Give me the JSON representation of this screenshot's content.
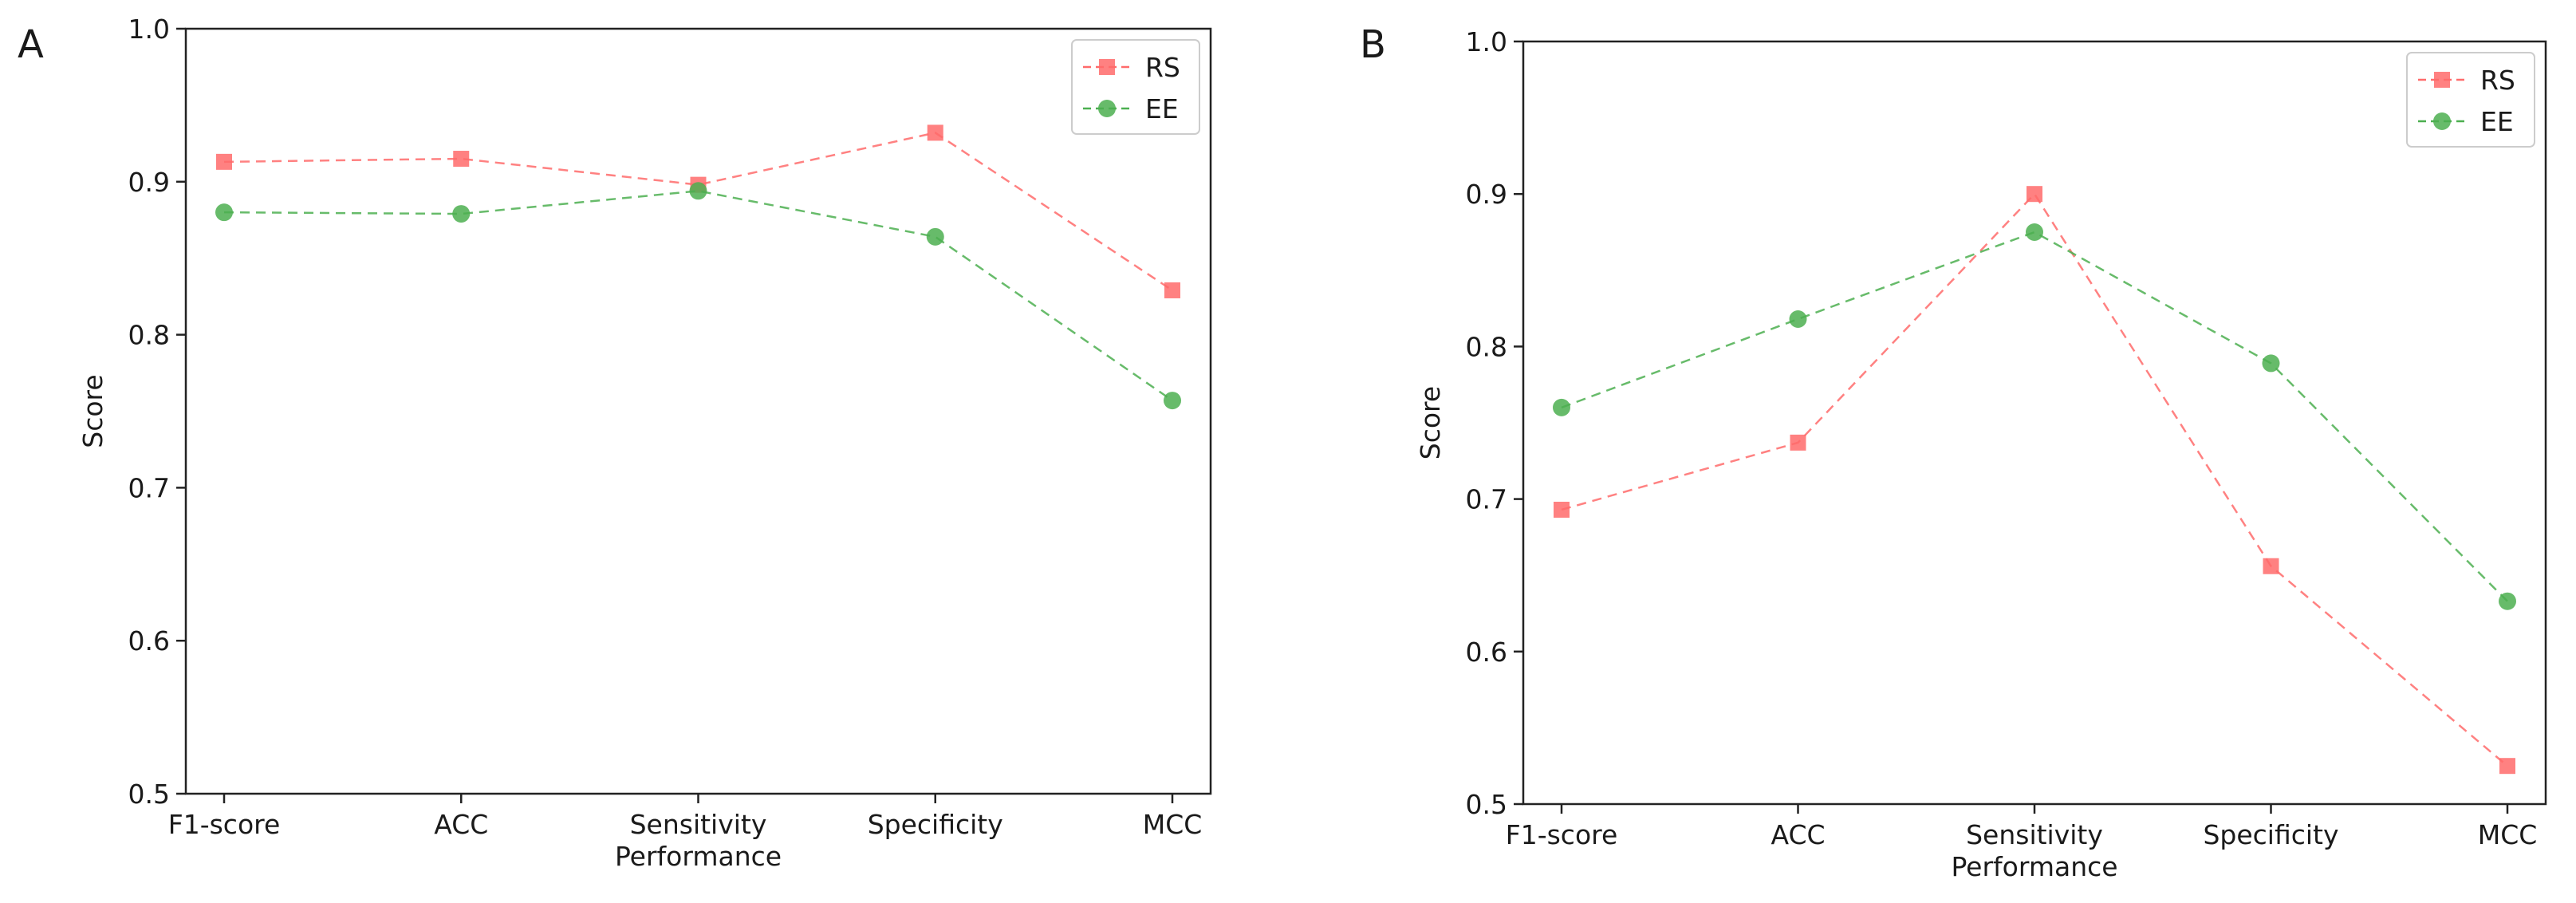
{
  "chart_data": [
    {
      "panel": "A",
      "type": "line",
      "categories": [
        "F1-score",
        "ACC",
        "Sensitivity",
        "Specificity",
        "MCC"
      ],
      "series": [
        {
          "name": "RS",
          "color": "#ff6b6b",
          "marker": "square",
          "values": [
            0.913,
            0.915,
            0.898,
            0.932,
            0.829
          ]
        },
        {
          "name": "EE",
          "color": "#4caf50",
          "marker": "circle",
          "values": [
            0.88,
            0.879,
            0.894,
            0.864,
            0.757
          ]
        }
      ],
      "xlabel": "Performance",
      "ylabel": "Score",
      "ylim": [
        0.5,
        1.0
      ],
      "yticks": [
        "0.5",
        "0.6",
        "0.7",
        "0.8",
        "0.9",
        "1.0"
      ],
      "legend": "top-right"
    },
    {
      "panel": "B",
      "type": "line",
      "categories": [
        "F1-score",
        "ACC",
        "Sensitivity",
        "Specificity",
        "MCC"
      ],
      "series": [
        {
          "name": "RS",
          "color": "#ff6b6b",
          "marker": "square",
          "values": [
            0.693,
            0.737,
            0.9,
            0.656,
            0.525
          ]
        },
        {
          "name": "EE",
          "color": "#4caf50",
          "marker": "circle",
          "values": [
            0.76,
            0.818,
            0.875,
            0.789,
            0.633
          ]
        }
      ],
      "xlabel": "Performance",
      "ylabel": "Score",
      "ylim": [
        0.5,
        1.0
      ],
      "yticks": [
        "0.5",
        "0.6",
        "0.7",
        "0.8",
        "0.9",
        "1.0"
      ],
      "legend": "top-right"
    }
  ]
}
